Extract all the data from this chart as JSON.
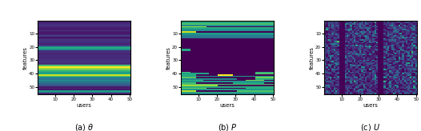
{
  "n_users": 50,
  "n_features": 55,
  "cmap": "viridis",
  "xlabel": "users",
  "ylabel": "features",
  "xticks": [
    10,
    20,
    30,
    40,
    50
  ],
  "yticks": [
    10,
    20,
    30,
    40,
    50
  ],
  "captions": [
    "(a) $\\theta$",
    "(b) $P$",
    "(c) $U$"
  ],
  "figsize": [
    5.26,
    1.64
  ],
  "dpi": 100,
  "theta_stripes": {
    "background": 0.08,
    "stripes": [
      {
        "row": 19,
        "val": 0.55
      },
      {
        "row": 20,
        "val": 0.62
      },
      {
        "row": 21,
        "val": 0.48
      },
      {
        "row": 33,
        "val": 0.72
      },
      {
        "row": 34,
        "val": 1.0
      },
      {
        "row": 35,
        "val": 0.88
      },
      {
        "row": 36,
        "val": 0.78
      },
      {
        "row": 37,
        "val": 0.65
      },
      {
        "row": 38,
        "val": 0.55
      },
      {
        "row": 39,
        "val": 0.58
      },
      {
        "row": 40,
        "val": 0.92
      },
      {
        "row": 41,
        "val": 0.72
      },
      {
        "row": 42,
        "val": 0.45
      },
      {
        "row": 43,
        "val": 0.38
      },
      {
        "row": 44,
        "val": 0.52
      },
      {
        "row": 45,
        "val": 0.42
      },
      {
        "row": 46,
        "val": 0.35
      },
      {
        "row": 47,
        "val": 0.32
      },
      {
        "row": 48,
        "val": 0.25
      },
      {
        "row": 52,
        "val": 0.55
      },
      {
        "row": 53,
        "val": 0.48
      }
    ]
  }
}
